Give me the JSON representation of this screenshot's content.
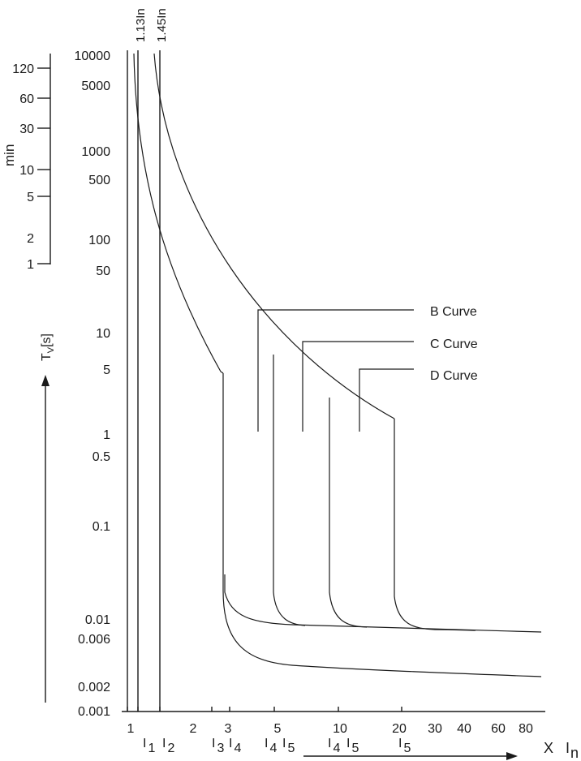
{
  "chart_data": {
    "type": "line",
    "title": "",
    "x_axis": {
      "label": "X",
      "unit_label": "I",
      "unit_subscript": "n",
      "scale": "log",
      "range": [
        1,
        100
      ],
      "tick_labels": [
        "1",
        "2",
        "3",
        "5",
        "10",
        "20",
        "30",
        "40",
        "60",
        "80"
      ]
    },
    "y_axis_seconds": {
      "label": "T",
      "label_subscript": "V",
      "label_suffix": "[s]",
      "scale": "log",
      "range": [
        0.001,
        10000
      ],
      "tick_labels": [
        "10000",
        "5000",
        "1000",
        "500",
        "100",
        "50",
        "10",
        "5",
        "1",
        "0.5",
        "0.1",
        "0.01",
        "0.006",
        "0.002",
        "0.001"
      ]
    },
    "y_axis_minutes": {
      "label": "min",
      "tick_labels": [
        "120",
        "60",
        "30",
        "10",
        "5",
        "2",
        "1"
      ]
    },
    "reference_lines": [
      {
        "label": "1.13In",
        "x": 1.13
      },
      {
        "label": "1.45In",
        "x": 1.45
      }
    ],
    "current_markers": [
      {
        "label": "I",
        "sub": "1",
        "x": 1.13
      },
      {
        "label": "I",
        "sub": "2",
        "x": 1.45
      },
      {
        "label": "I",
        "sub": "3",
        "x": 2.6
      },
      {
        "label": "I",
        "sub": "4",
        "x": 3.0
      },
      {
        "label": "I",
        "sub": "4",
        "x": 4.6
      },
      {
        "label": "I",
        "sub": "5",
        "x": 5.8
      },
      {
        "label": "I",
        "sub": "4",
        "x": 9.0
      },
      {
        "label": "I",
        "sub": "5",
        "x": 11.5
      },
      {
        "label": "I",
        "sub": "5",
        "x": 19.5
      }
    ],
    "series": [
      {
        "name": "B Curve",
        "thermal_trip_x": 3,
        "thermal_trip_y": 5,
        "magnetic_x": [
          3,
          5
        ]
      },
      {
        "name": "C Curve",
        "thermal_trip_x": 5,
        "thermal_trip_y": 6,
        "magnetic_x": [
          5,
          10
        ]
      },
      {
        "name": "D Curve",
        "thermal_trip_x": 10,
        "thermal_trip_y": 2.5,
        "magnetic_x": [
          10,
          20
        ]
      }
    ],
    "legend_labels": [
      "B Curve",
      "C Curve",
      "D Curve"
    ],
    "grid": false
  }
}
